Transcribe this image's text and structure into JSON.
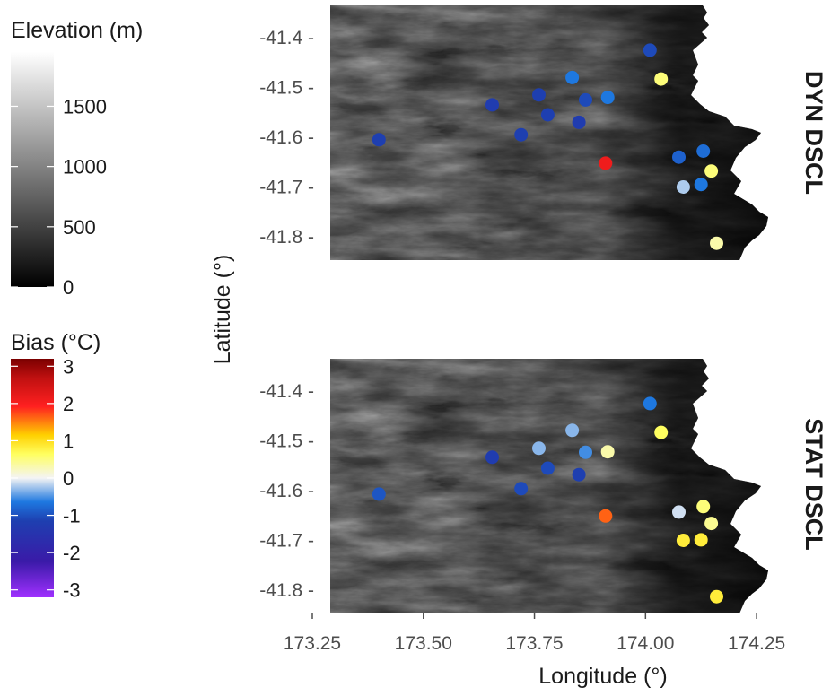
{
  "chart_data": {
    "type": "scatter",
    "xlabel": "Longitude (°)",
    "ylabel": "Latitude (°)",
    "xlim": [
      173.25,
      174.27
    ],
    "ylim": [
      -41.86,
      -41.34
    ],
    "x_ticks": [
      173.25,
      173.5,
      173.75,
      174.0,
      174.25
    ],
    "x_tick_labels": [
      "173.25",
      "173.50",
      "173.75",
      "174.00",
      "174.25"
    ],
    "y_ticks": [
      -41.4,
      -41.5,
      -41.6,
      -41.7,
      -41.8
    ],
    "y_tick_labels": [
      "-41.4 -",
      "-41.5 -",
      "-41.6 -",
      "-41.7 -",
      "-41.8 -"
    ],
    "legends": {
      "elevation": {
        "title": "Elevation (m)",
        "ticks": [
          0,
          500,
          1000,
          1500
        ],
        "tick_labels": [
          "0",
          "500",
          "1000",
          "1500"
        ],
        "range": [
          0,
          1950
        ],
        "colors": [
          "#000000",
          "#ffffff"
        ]
      },
      "bias": {
        "title": "Bias (°C)",
        "ticks": [
          3,
          2,
          1,
          0,
          -1,
          -2,
          -3
        ],
        "tick_labels": [
          "3",
          "2",
          "1",
          "0",
          "-1",
          "-2",
          "-3"
        ],
        "range": [
          -3.2,
          3.2
        ],
        "colors": [
          "#9b30ff",
          "#1a1a8c",
          "#1e6fd9",
          "#f2f2f2",
          "#ffff40",
          "#ff1a1a",
          "#8b0000"
        ]
      }
    },
    "panels": [
      {
        "strip": "DYN DSCL",
        "points": [
          {
            "lon": 173.4,
            "lat": -41.605,
            "bias": -1.1
          },
          {
            "lon": 173.655,
            "lat": -41.535,
            "bias": -1.2
          },
          {
            "lon": 173.72,
            "lat": -41.595,
            "bias": -1.1
          },
          {
            "lon": 173.76,
            "lat": -41.515,
            "bias": -1.1
          },
          {
            "lon": 173.78,
            "lat": -41.555,
            "bias": -1.1
          },
          {
            "lon": 173.835,
            "lat": -41.48,
            "bias": -0.6
          },
          {
            "lon": 173.85,
            "lat": -41.57,
            "bias": -1.2
          },
          {
            "lon": 173.865,
            "lat": -41.525,
            "bias": -1.0
          },
          {
            "lon": 173.915,
            "lat": -41.52,
            "bias": -0.6
          },
          {
            "lon": 173.91,
            "lat": -41.652,
            "bias": 2.1
          },
          {
            "lon": 174.01,
            "lat": -41.425,
            "bias": -1.0
          },
          {
            "lon": 174.035,
            "lat": -41.483,
            "bias": 0.5
          },
          {
            "lon": 174.075,
            "lat": -41.64,
            "bias": -0.8
          },
          {
            "lon": 174.085,
            "lat": -41.7,
            "bias": -0.2
          },
          {
            "lon": 174.125,
            "lat": -41.695,
            "bias": -0.6
          },
          {
            "lon": 174.13,
            "lat": -41.628,
            "bias": -0.7
          },
          {
            "lon": 174.148,
            "lat": -41.668,
            "bias": 0.5
          },
          {
            "lon": 174.16,
            "lat": -41.813,
            "bias": 0.3
          }
        ]
      },
      {
        "strip": "STAT DSCL",
        "points": [
          {
            "lon": 173.4,
            "lat": -41.607,
            "bias": -0.9
          },
          {
            "lon": 173.655,
            "lat": -41.533,
            "bias": -1.2
          },
          {
            "lon": 173.72,
            "lat": -41.596,
            "bias": -1.0
          },
          {
            "lon": 173.76,
            "lat": -41.515,
            "bias": -0.3
          },
          {
            "lon": 173.78,
            "lat": -41.555,
            "bias": -1.0
          },
          {
            "lon": 173.835,
            "lat": -41.479,
            "bias": -0.3
          },
          {
            "lon": 173.85,
            "lat": -41.568,
            "bias": -1.1
          },
          {
            "lon": 173.865,
            "lat": -41.523,
            "bias": -0.5
          },
          {
            "lon": 173.915,
            "lat": -41.522,
            "bias": 0.3
          },
          {
            "lon": 173.91,
            "lat": -41.651,
            "bias": 1.6
          },
          {
            "lon": 174.01,
            "lat": -41.425,
            "bias": -0.6
          },
          {
            "lon": 174.035,
            "lat": -41.483,
            "bias": 0.6
          },
          {
            "lon": 174.075,
            "lat": -41.643,
            "bias": -0.1
          },
          {
            "lon": 174.085,
            "lat": -41.7,
            "bias": 0.8
          },
          {
            "lon": 174.125,
            "lat": -41.699,
            "bias": 0.8
          },
          {
            "lon": 174.13,
            "lat": -41.632,
            "bias": 0.5
          },
          {
            "lon": 174.148,
            "lat": -41.666,
            "bias": 0.4
          },
          {
            "lon": 174.16,
            "lat": -41.813,
            "bias": 0.8
          }
        ]
      }
    ]
  }
}
